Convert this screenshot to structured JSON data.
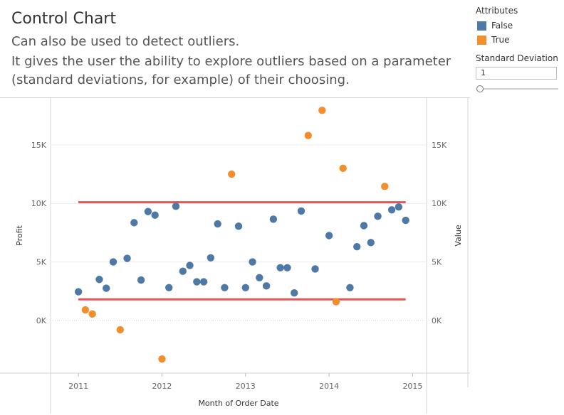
{
  "header": {
    "title": "Control Chart",
    "subtitle_lines": [
      "Can also be used to detect outliers.",
      "It gives the user the ability to explore outliers based on a parameter",
      "(standard deviations, for example) of their choosing."
    ]
  },
  "legend": {
    "title": "Attributes",
    "items": [
      {
        "label": "False",
        "color": "#4e79a7"
      },
      {
        "label": "True",
        "color": "#f28e2b"
      }
    ]
  },
  "parameter": {
    "title": "Standard Deviation",
    "value": "1",
    "slider_fraction": 0.0
  },
  "chart_data": {
    "type": "scatter",
    "xlabel": "Month of Order Date",
    "ylabel_left": "Profit",
    "ylabel_right": "Value",
    "x_ticks": [
      "2011",
      "2012",
      "2013",
      "2014",
      "2015"
    ],
    "y_ticks": [
      "0K",
      "5K",
      "10K",
      "15K"
    ],
    "y_tick_values": [
      0,
      5000,
      10000,
      15000
    ],
    "xlim": [
      "2010-09",
      "2015-03"
    ],
    "ylim": [
      -4500,
      19000
    ],
    "grid": "horizontal",
    "control_limits": {
      "upper": 10100,
      "lower": 1800,
      "color": "#e15759",
      "from": "2011-01",
      "to": "2014-12"
    },
    "points": [
      {
        "x": "2011-01",
        "y": 2450,
        "outlier": false
      },
      {
        "x": "2011-02",
        "y": 900,
        "outlier": true
      },
      {
        "x": "2011-03",
        "y": 550,
        "outlier": true
      },
      {
        "x": "2011-04",
        "y": 3500,
        "outlier": false
      },
      {
        "x": "2011-05",
        "y": 2750,
        "outlier": false
      },
      {
        "x": "2011-06",
        "y": 5000,
        "outlier": false
      },
      {
        "x": "2011-07",
        "y": -800,
        "outlier": true
      },
      {
        "x": "2011-08",
        "y": 5300,
        "outlier": false
      },
      {
        "x": "2011-09",
        "y": 8350,
        "outlier": false
      },
      {
        "x": "2011-10",
        "y": 3450,
        "outlier": false
      },
      {
        "x": "2011-11",
        "y": 9300,
        "outlier": false
      },
      {
        "x": "2011-12",
        "y": 9000,
        "outlier": false
      },
      {
        "x": "2012-01",
        "y": -3300,
        "outlier": true
      },
      {
        "x": "2012-02",
        "y": 2800,
        "outlier": false
      },
      {
        "x": "2012-03",
        "y": 9750,
        "outlier": false
      },
      {
        "x": "2012-04",
        "y": 4200,
        "outlier": false
      },
      {
        "x": "2012-05",
        "y": 4700,
        "outlier": false
      },
      {
        "x": "2012-06",
        "y": 3300,
        "outlier": false
      },
      {
        "x": "2012-07",
        "y": 3300,
        "outlier": false
      },
      {
        "x": "2012-08",
        "y": 5350,
        "outlier": false
      },
      {
        "x": "2012-09",
        "y": 8250,
        "outlier": false
      },
      {
        "x": "2012-10",
        "y": 2800,
        "outlier": false
      },
      {
        "x": "2012-11",
        "y": 12500,
        "outlier": true
      },
      {
        "x": "2012-12",
        "y": 8050,
        "outlier": false
      },
      {
        "x": "2013-01",
        "y": 2800,
        "outlier": false
      },
      {
        "x": "2013-02",
        "y": 5000,
        "outlier": false
      },
      {
        "x": "2013-03",
        "y": 3650,
        "outlier": false
      },
      {
        "x": "2013-04",
        "y": 2950,
        "outlier": false
      },
      {
        "x": "2013-05",
        "y": 8650,
        "outlier": false
      },
      {
        "x": "2013-06",
        "y": 4500,
        "outlier": false
      },
      {
        "x": "2013-07",
        "y": 4500,
        "outlier": false
      },
      {
        "x": "2013-08",
        "y": 2350,
        "outlier": false
      },
      {
        "x": "2013-09",
        "y": 9350,
        "outlier": false
      },
      {
        "x": "2013-10",
        "y": 15800,
        "outlier": true
      },
      {
        "x": "2013-11",
        "y": 4400,
        "outlier": false
      },
      {
        "x": "2013-12",
        "y": 17950,
        "outlier": true
      },
      {
        "x": "2014-01",
        "y": 7250,
        "outlier": false
      },
      {
        "x": "2014-02",
        "y": 1600,
        "outlier": true
      },
      {
        "x": "2014-03",
        "y": 13000,
        "outlier": true
      },
      {
        "x": "2014-04",
        "y": 2800,
        "outlier": false
      },
      {
        "x": "2014-05",
        "y": 6300,
        "outlier": false
      },
      {
        "x": "2014-06",
        "y": 8100,
        "outlier": false
      },
      {
        "x": "2014-07",
        "y": 6650,
        "outlier": false
      },
      {
        "x": "2014-08",
        "y": 8900,
        "outlier": false
      },
      {
        "x": "2014-09",
        "y": 11450,
        "outlier": true
      },
      {
        "x": "2014-10",
        "y": 9450,
        "outlier": false
      },
      {
        "x": "2014-11",
        "y": 9700,
        "outlier": false
      },
      {
        "x": "2014-12",
        "y": 8550,
        "outlier": false
      }
    ]
  }
}
